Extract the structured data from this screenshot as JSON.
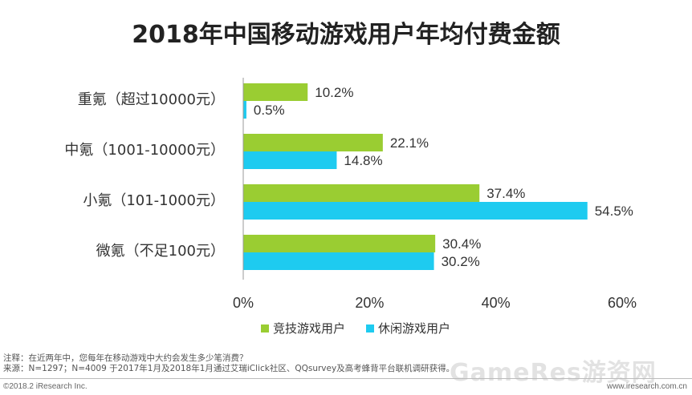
{
  "chart_data": {
    "type": "bar",
    "orientation": "horizontal",
    "title": "2018年中国移动游戏用户年均付费金额",
    "categories": [
      "重氪（超过10000元）",
      "中氪（1001-10000元）",
      "小氪（101-1000元）",
      "微氪（不足100元）"
    ],
    "series": [
      {
        "name": "竞技游戏用户",
        "color": "#9ACD32",
        "values": [
          10.2,
          22.1,
          37.4,
          30.4
        ]
      },
      {
        "name": "休闲游戏用户",
        "color": "#1ECBF0",
        "values": [
          0.5,
          14.8,
          54.5,
          30.2
        ]
      }
    ],
    "xlim": [
      0,
      60
    ],
    "xticks": [
      "0%",
      "20%",
      "40%",
      "60%"
    ],
    "value_suffix": "%",
    "legend_position": "bottom"
  },
  "notes": {
    "line1": "注释：在近两年中，您每年在移动游戏中大约会发生多少笔消费？",
    "line2": "来源：N=1297；N=4009 于2017年1月及2018年1月通过艾瑞iClick社区、QQsurvey及高考蜂背平台联机调研获得。"
  },
  "footer": {
    "copyright": "©2018.2 iResearch Inc.",
    "site": "www.iresearch.com.cn"
  },
  "watermark": "GameRes游资网"
}
